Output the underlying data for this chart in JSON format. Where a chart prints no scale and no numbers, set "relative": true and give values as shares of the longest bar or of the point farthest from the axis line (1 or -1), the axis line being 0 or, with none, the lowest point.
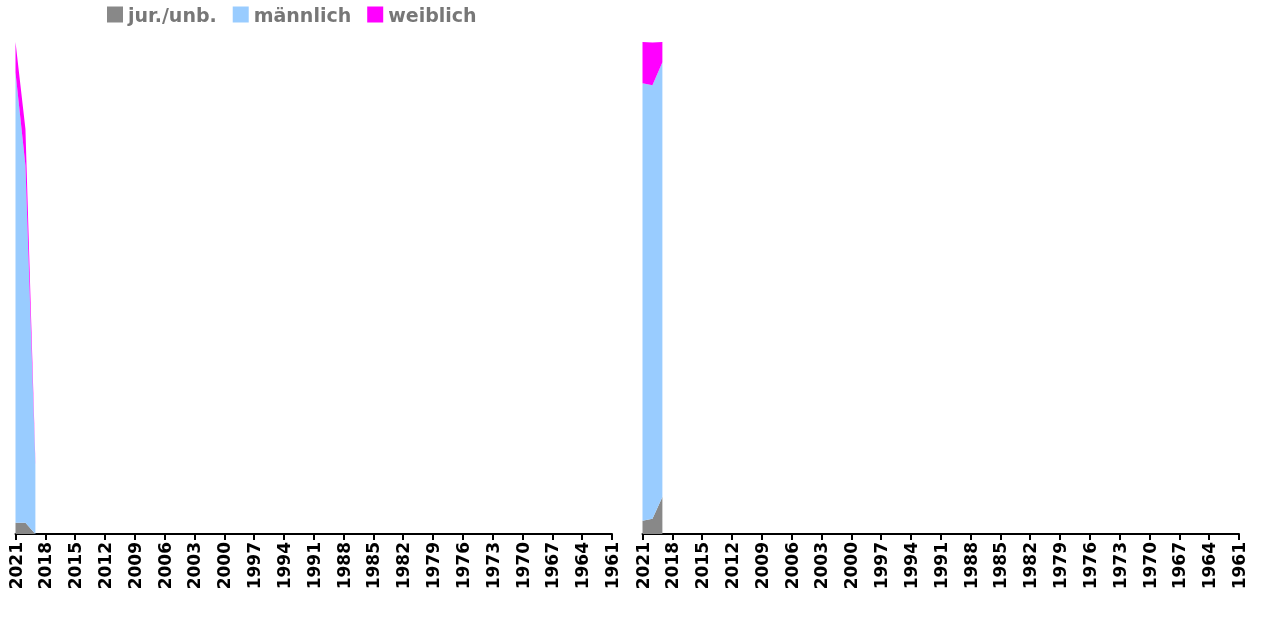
{
  "chart_data": [
    {
      "type": "area",
      "stacked": true,
      "relative": true,
      "legend": "top left",
      "grid": false,
      "x": [
        2021,
        2020,
        2019
      ],
      "xlim": [
        2021,
        1961
      ],
      "xticks": [
        2021,
        2018,
        2015,
        2012,
        2009,
        2006,
        2003,
        2000,
        1997,
        1994,
        1991,
        1988,
        1985,
        1982,
        1979,
        1976,
        1973,
        1970,
        1967,
        1964,
        1961
      ],
      "series": [
        {
          "name": "jur./unb.",
          "color": "#888888",
          "values": [
            0.023,
            0.023,
            0
          ]
        },
        {
          "name": "männlich",
          "color": "#99ccff",
          "values": [
            0.915,
            0.726,
            0.141
          ]
        },
        {
          "name": "weiblich",
          "color": "#ff00ff",
          "values": [
            0.062,
            0.074,
            0.006
          ]
        }
      ]
    },
    {
      "type": "area",
      "stacked": true,
      "relative": true,
      "legend": false,
      "grid": false,
      "x": [
        2021,
        2020,
        2019
      ],
      "xlim": [
        2021,
        1961
      ],
      "xticks": [
        2021,
        2018,
        2015,
        2012,
        2009,
        2006,
        2003,
        2000,
        1997,
        1994,
        1991,
        1988,
        1985,
        1982,
        1979,
        1976,
        1973,
        1970,
        1967,
        1964,
        1961
      ],
      "series": [
        {
          "color": "#888888",
          "values": [
            0.027,
            0.031,
            0.075
          ]
        },
        {
          "color": "#99ccff",
          "values": [
            0.889,
            0.881,
            0.884
          ]
        },
        {
          "color": "#ff00ff",
          "values": [
            0.084,
            0.087,
            0.041
          ]
        }
      ]
    }
  ]
}
